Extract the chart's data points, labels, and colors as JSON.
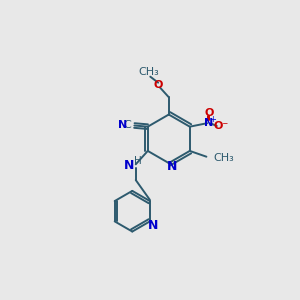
{
  "bg_color": "#e8e8e8",
  "bond_color": "#2d5a6e",
  "n_color": "#0000cc",
  "o_color": "#cc0000",
  "bond_width": 1.4,
  "dbo": 0.012,
  "fig_size": [
    3.0,
    3.0
  ],
  "dpi": 100,
  "xlim": [
    0,
    1
  ],
  "ylim": [
    0,
    1
  ]
}
